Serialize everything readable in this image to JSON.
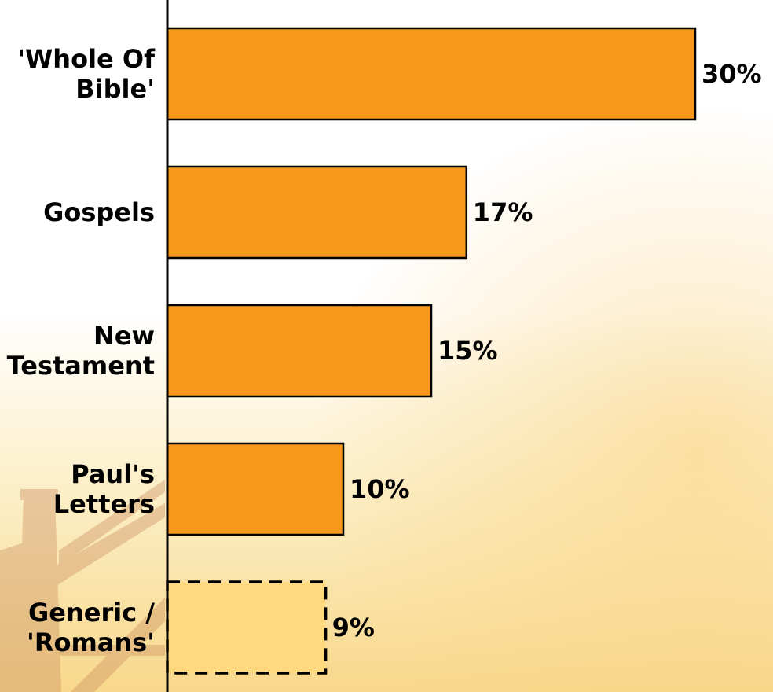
{
  "chart_data": {
    "type": "bar",
    "orientation": "horizontal",
    "categories": [
      [
        "'Whole Of",
        "Bible'"
      ],
      [
        "Gospels"
      ],
      [
        "New",
        "Testament"
      ],
      [
        "Paul's",
        "Letters"
      ],
      [
        "Generic /",
        "'Romans'"
      ]
    ],
    "values": [
      30,
      17,
      15,
      10,
      9
    ],
    "value_labels": [
      "30%",
      "17%",
      "15%",
      "10%",
      "9%"
    ],
    "bar_styles": [
      "solid",
      "solid",
      "solid",
      "solid",
      "dashed"
    ],
    "title": "",
    "xlabel": "",
    "ylabel": "",
    "xlim": [
      0,
      40
    ],
    "grid": false,
    "legend": "none"
  },
  "colors": {
    "bar_fill": "#F7981D",
    "bar_fill_highlight": "#FFD980",
    "bar_stroke": "#000000",
    "axis": "#000000",
    "background_top": "#FFFFFF",
    "background_bottom": "#F9D98A",
    "background_art": "#C98A5C"
  }
}
